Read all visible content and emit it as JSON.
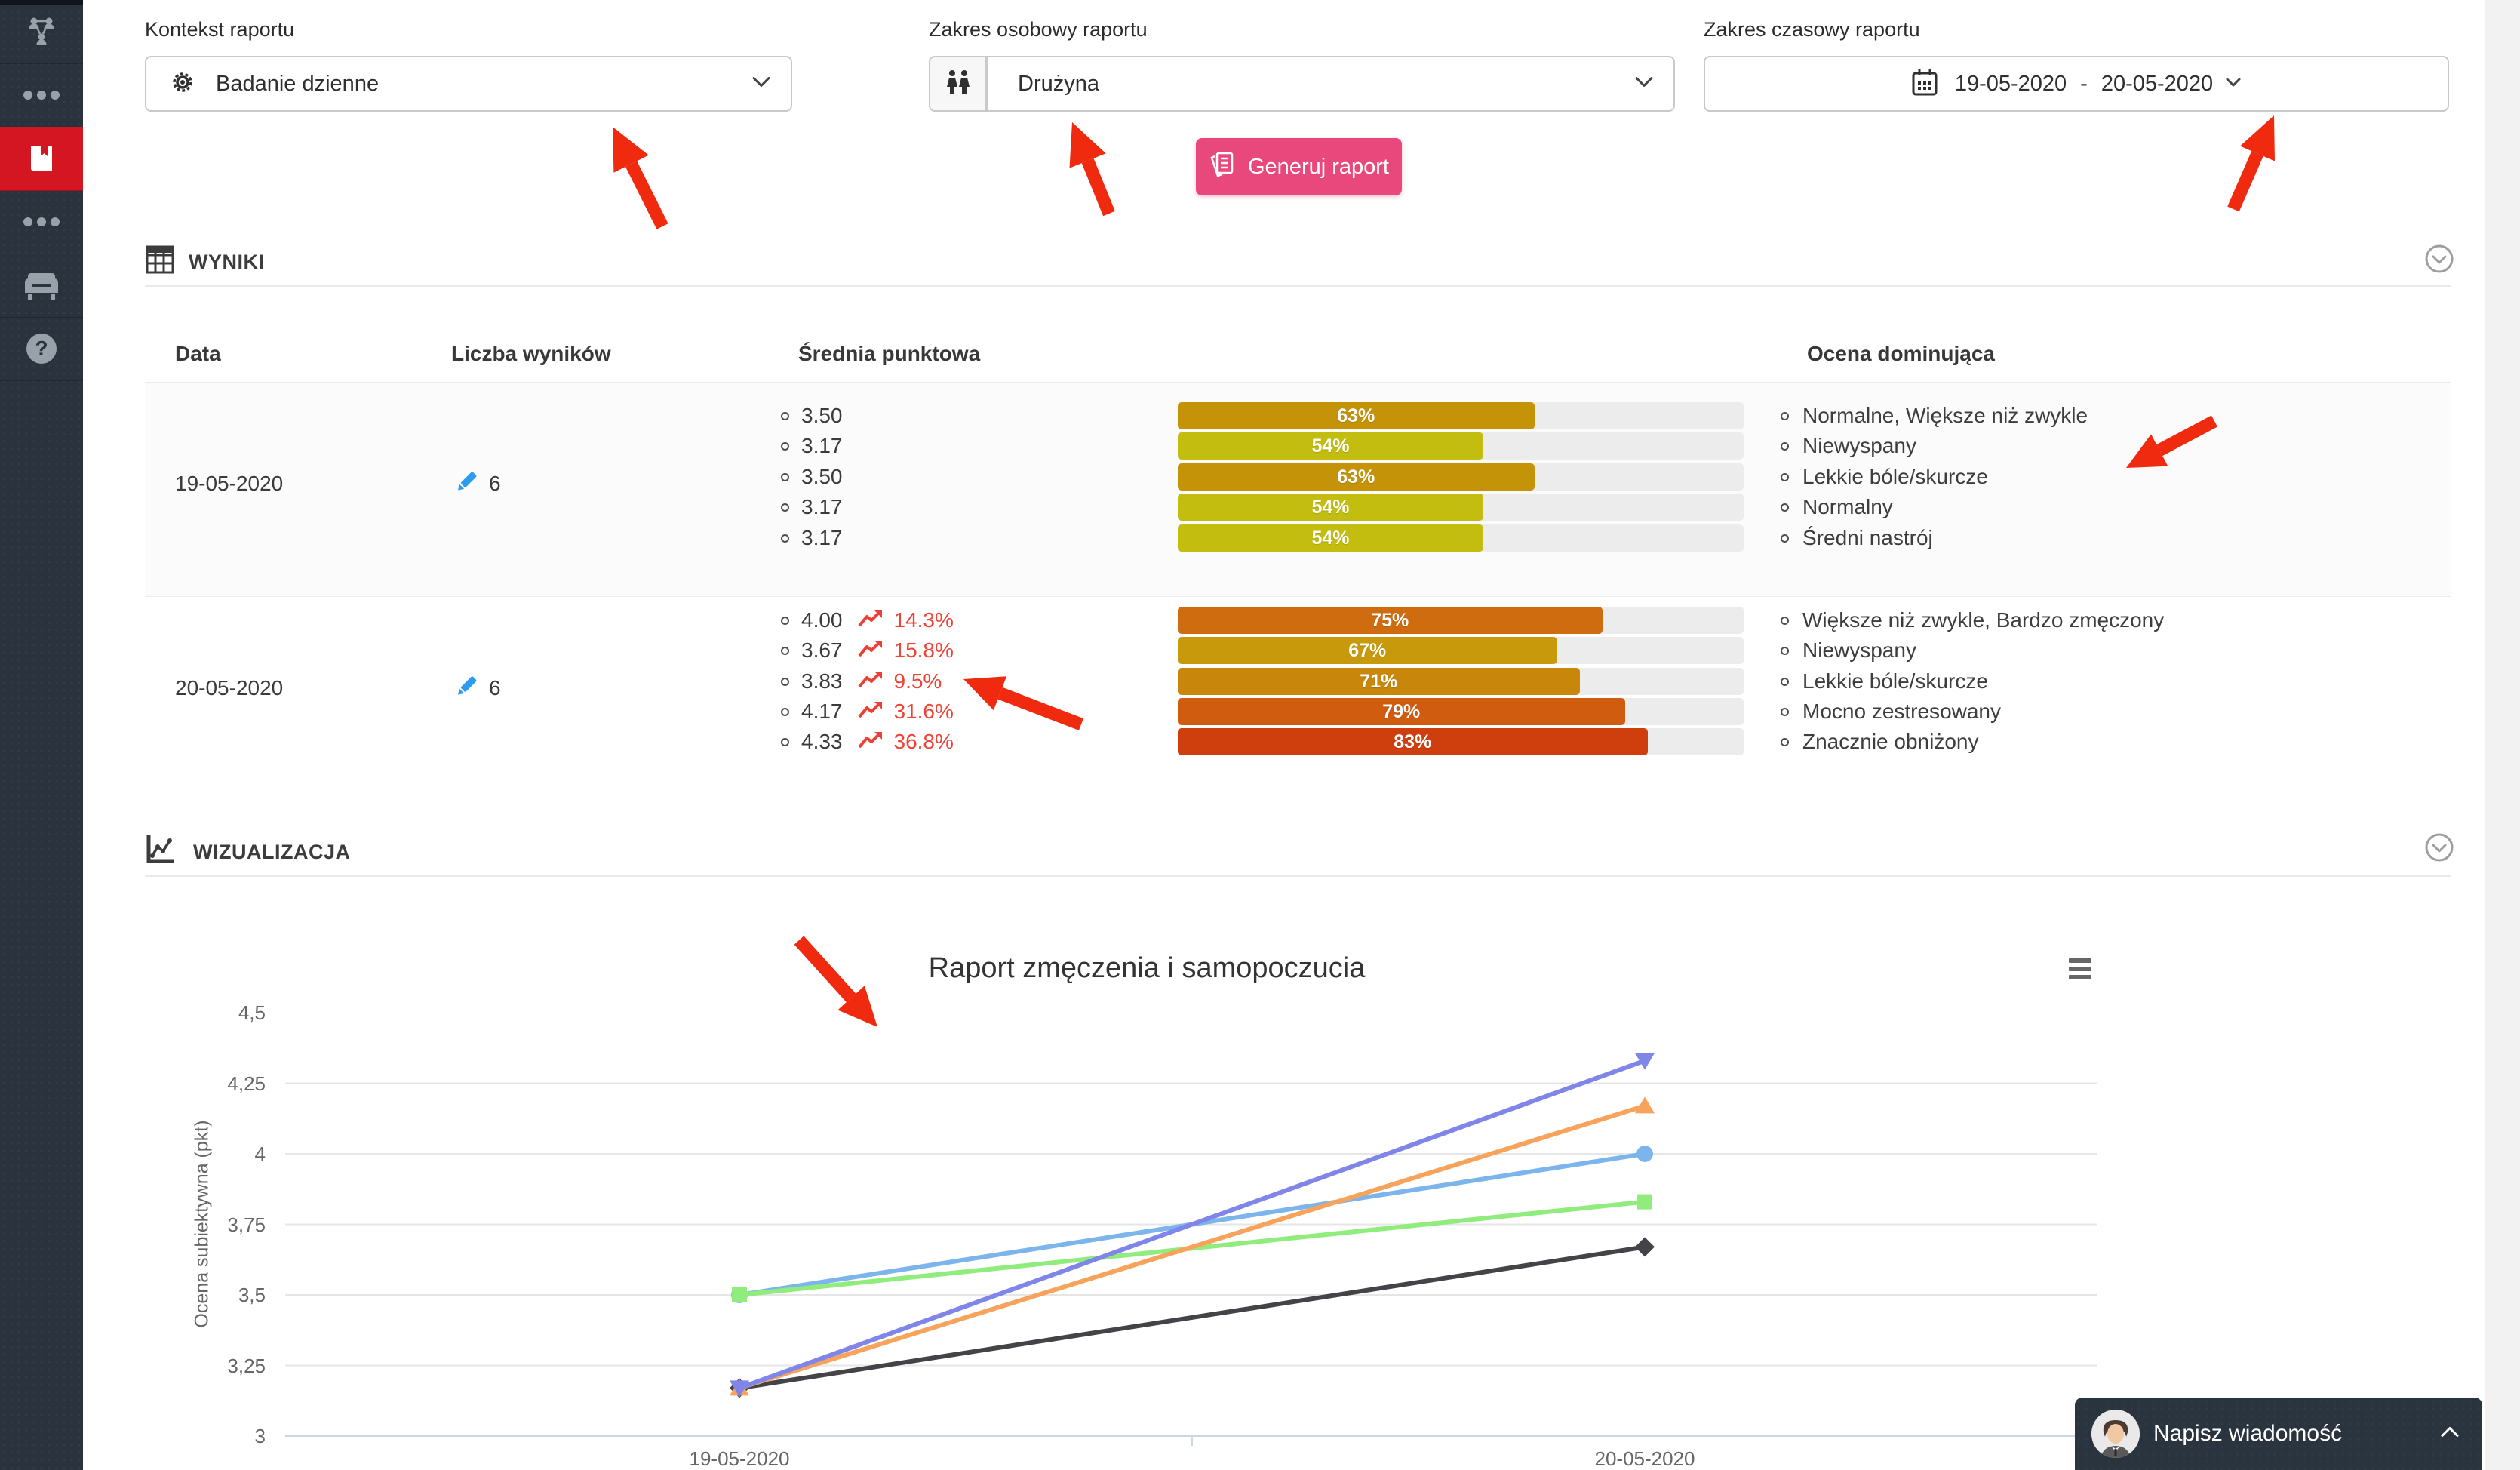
{
  "sidebar": {
    "items": [
      {
        "icon": "org-chart-icon",
        "active": false
      },
      {
        "icon": "ellipsis-icon",
        "active": false
      },
      {
        "icon": "journal-book-icon",
        "active": true
      },
      {
        "icon": "ellipsis-icon",
        "active": false
      },
      {
        "icon": "armchair-icon",
        "active": false
      },
      {
        "icon": "help-icon",
        "active": false
      }
    ],
    "active_color": "#d41522",
    "background": "#2a333d"
  },
  "filters": {
    "context": {
      "label": "Kontekst raportu",
      "value": "Badanie dzienne",
      "icon": "gear-icon"
    },
    "personal": {
      "label": "Zakres osobowy raportu",
      "value": "Drużyna",
      "icon": "people-icon"
    },
    "time": {
      "label": "Zakres czasowy raportu",
      "icon": "calendar-icon",
      "from": "19-05-2020",
      "sep": "-",
      "to": "20-05-2020"
    }
  },
  "generate": {
    "label": "Generuj raport",
    "color": "#e8487b"
  },
  "results": {
    "title": "WYNIKI",
    "columns": [
      "Data",
      "Liczba wyników",
      "Średnia punktowa",
      "Ocena dominująca"
    ],
    "rows": [
      {
        "date": "19-05-2020",
        "count": "6",
        "scores": [
          {
            "value": "3.50",
            "pct": "63%",
            "color": "#c49307"
          },
          {
            "value": "3.17",
            "pct": "54%",
            "color": "#c2bd0f"
          },
          {
            "value": "3.50",
            "pct": "63%",
            "color": "#c49307"
          },
          {
            "value": "3.17",
            "pct": "54%",
            "color": "#c2bd0f"
          },
          {
            "value": "3.17",
            "pct": "54%",
            "color": "#c2bd0f"
          }
        ],
        "dominant": [
          "Normalne, Większe niż zwykle",
          "Niewyspany",
          "Lekkie bóle/skurcze",
          "Normalny",
          "Średni nastrój"
        ]
      },
      {
        "date": "20-05-2020",
        "count": "6",
        "scores": [
          {
            "value": "4.00",
            "trend": "14.3%",
            "pct": "75%",
            "color": "#d06c10"
          },
          {
            "value": "3.67",
            "trend": "15.8%",
            "pct": "67%",
            "color": "#c89a0b"
          },
          {
            "value": "3.83",
            "trend": "9.5%",
            "pct": "71%",
            "color": "#c8860a"
          },
          {
            "value": "4.17",
            "trend": "31.6%",
            "pct": "79%",
            "color": "#d05c10"
          },
          {
            "value": "4.33",
            "trend": "36.8%",
            "pct": "83%",
            "color": "#cf3f0d"
          }
        ],
        "dominant": [
          "Większe niż zwykle, Bardzo zmęczony",
          "Niewyspany",
          "Lekkie bóle/skurcze",
          "Mocno zestresowany",
          "Znacznie obniżony"
        ]
      }
    ],
    "trend_color": "#ef4337"
  },
  "viz": {
    "title": "WIZUALIZACJA"
  },
  "chart_data": {
    "type": "line",
    "title": "Raport zmęczenia i samopoczucia",
    "categories": [
      "19-05-2020",
      "20-05-2020"
    ],
    "series": [
      {
        "marker": "circle",
        "color": "#7cb5ec",
        "values": [
          3.5,
          4.0
        ]
      },
      {
        "marker": "diamond",
        "color": "#434348",
        "values": [
          3.17,
          3.67
        ]
      },
      {
        "marker": "square",
        "color": "#90ed7d",
        "values": [
          3.5,
          3.83
        ]
      },
      {
        "marker": "triangle",
        "color": "#f7a35c",
        "values": [
          3.17,
          4.17
        ]
      },
      {
        "marker": "triangle-down",
        "color": "#8085e9",
        "values": [
          3.17,
          4.33
        ]
      }
    ],
    "ylabel": "Ocena subiektywna (pkt)",
    "ylim": [
      3,
      4.5
    ],
    "yticks": [
      {
        "label": "4,5",
        "value": 4.5
      },
      {
        "label": "4,25",
        "value": 4.25
      },
      {
        "label": "4",
        "value": 4
      },
      {
        "label": "3,75",
        "value": 3.75
      },
      {
        "label": "3,5",
        "value": 3.5
      },
      {
        "label": "3,25",
        "value": 3.25
      },
      {
        "label": "3",
        "value": 3
      }
    ],
    "grid": true,
    "legend": "none",
    "axis_line_color": "#ccd6eb"
  },
  "chat": {
    "label": "Napisz wiadomość"
  },
  "annotation_color": "#f02a0e"
}
